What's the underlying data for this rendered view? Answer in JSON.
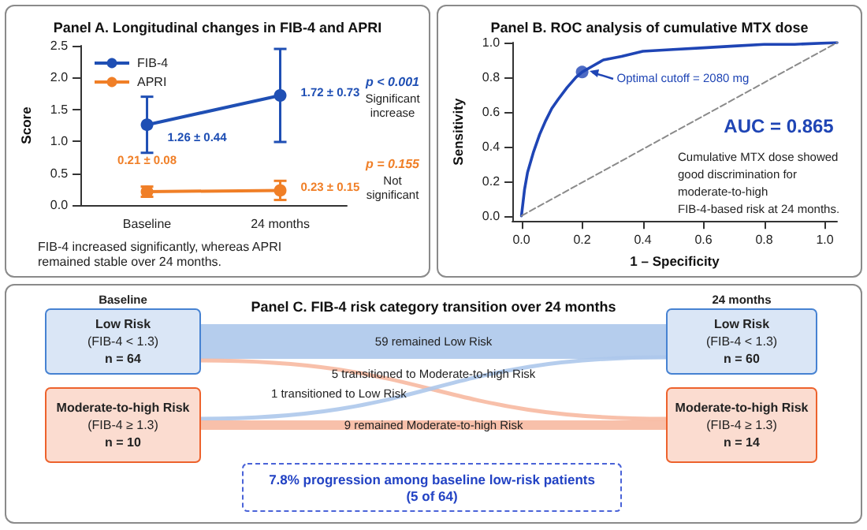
{
  "chart_data": [
    {
      "type": "line",
      "title": "Panel A. Longitudinal changes in FIB-4 and APRI",
      "ylabel": "Score",
      "categories": [
        "Baseline",
        "24 months"
      ],
      "series": [
        {
          "name": "FIB-4",
          "color": "#1f4fb4",
          "values": [
            1.26,
            1.72
          ],
          "errors": [
            0.44,
            0.73
          ],
          "value_labels": [
            "1.26 ± 0.44",
            "1.72 ± 0.73"
          ]
        },
        {
          "name": "APRI",
          "color": "#f07f27",
          "values": [
            0.21,
            0.23
          ],
          "errors": [
            0.08,
            0.15
          ],
          "value_labels": [
            "0.21 ± 0.08",
            "0.23 ± 0.15"
          ]
        }
      ],
      "ylim": [
        0,
        2.5
      ],
      "yticks": [
        {
          "value": 0,
          "label": "0.0"
        },
        0.5,
        {
          "value": 1,
          "label": "1.0"
        },
        1.5,
        {
          "value": 2,
          "label": "2.0"
        },
        2.5
      ],
      "legend": "top left",
      "marker": "circle",
      "annotations": [
        "p < 0.001",
        "Significant\nincrease",
        "p = 0.155",
        "Not\nsignificant",
        "FIB-4 increased significantly, whereas APRI\nremained stable over 24 months."
      ]
    },
    {
      "type": "line",
      "title": "Panel B. ROC analysis of cumulative MTX dose",
      "xlabel": "1 – Specificity",
      "ylabel": "Sensitivity",
      "series": [
        {
          "color": "#1f45b5",
          "x": [
            0,
            0.01,
            0.02,
            0.04,
            0.06,
            0.08,
            0.1,
            0.12,
            0.15,
            0.18,
            0.2,
            0.23,
            0.27,
            0.33,
            0.4,
            0.5,
            0.6,
            0.7,
            0.8,
            0.9,
            1.04
          ],
          "values": [
            0,
            0.15,
            0.25,
            0.37,
            0.47,
            0.55,
            0.62,
            0.67,
            0.74,
            0.8,
            0.83,
            0.86,
            0.9,
            0.92,
            0.95,
            0.96,
            0.97,
            0.98,
            0.99,
            0.99,
            1.0
          ]
        },
        {
          "color": "#8a8a8a",
          "line_style": "dashed",
          "x": [
            0,
            1.04
          ],
          "values": [
            0,
            1
          ]
        },
        {
          "type": "scatter",
          "marker": "circle",
          "color": "#1f45b5",
          "x": [
            0.2
          ],
          "values": [
            0.83
          ]
        }
      ],
      "xlim": [
        -0.03,
        1.04
      ],
      "xticks": [
        {
          "value": 0,
          "label": "0.0"
        },
        0.2,
        0.4,
        0.6,
        0.8,
        {
          "value": 1,
          "label": "1.0"
        }
      ],
      "ylim": [
        -0.03,
        1.0
      ],
      "yticks": [
        {
          "value": 0,
          "label": "0.0"
        },
        0.2,
        0.4,
        0.6,
        0.8,
        {
          "value": 1,
          "label": "1.0"
        }
      ],
      "marker": "none",
      "annotations": [
        {
          "text": "Optimal cutoff = 2080 mg",
          "x": 0.2,
          "y": 0.83
        },
        "AUC = 0.865",
        "Cumulative MTX dose showed\ngood discrimination for\nmoderate-to-high\nFIB-4-based risk at 24 months."
      ]
    },
    {
      "type": "other",
      "title": "Panel C. FIB-4 risk category transition over 24 months",
      "categories": [
        "Baseline",
        "24 months"
      ],
      "y_categories": [
        "Low Risk\n(FIB-4 < 1.3)\nn = 64",
        "Moderate-to-high Risk\n(FIB-4 ≥ 1.3)\nn = 10"
      ],
      "y2_categories": [
        "Low Risk\n(FIB-4 < 1.3)\nn = 60",
        "Moderate-to-high Risk\n(FIB-4 ≥ 1.3)\nn = 14"
      ],
      "cell_labels": [
        [
          "59 remained Low Risk",
          "5 transitioned to Moderate-to-high Risk"
        ],
        [
          "1 transitioned to Low Risk",
          "9 remained Moderate-to-high Risk"
        ]
      ],
      "annotations": [
        "7.8% progression among baseline low-risk patients\n(5 of 64)"
      ]
    }
  ]
}
